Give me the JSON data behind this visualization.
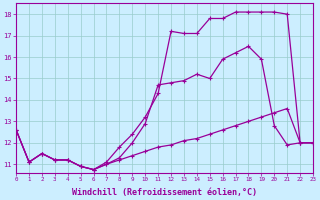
{
  "background_color": "#cceeff",
  "line_color": "#990099",
  "grid_color": "#99cccc",
  "xlabel": "Windchill (Refroidissement éolien,°C)",
  "xlabel_fontsize": 6.0,
  "xtick_labels": [
    "0",
    "1",
    "2",
    "3",
    "4",
    "5",
    "6",
    "7",
    "8",
    "9",
    "10",
    "11",
    "12",
    "13",
    "14",
    "15",
    "16",
    "17",
    "18",
    "19",
    "20",
    "21",
    "22",
    "23"
  ],
  "ytick_labels": [
    "11",
    "12",
    "13",
    "14",
    "15",
    "16",
    "17",
    "18"
  ],
  "ytick_vals": [
    11,
    12,
    13,
    14,
    15,
    16,
    17,
    18
  ],
  "xlim": [
    0,
    23
  ],
  "ylim": [
    10.6,
    18.5
  ],
  "curve1_x": [
    0,
    1,
    2,
    3,
    4,
    5,
    6,
    7,
    8,
    9,
    10,
    11,
    12,
    13,
    14,
    15,
    16,
    17,
    18,
    19,
    20,
    21,
    22,
    23
  ],
  "curve1_y": [
    12.6,
    11.1,
    11.5,
    11.2,
    11.2,
    10.9,
    10.75,
    11.1,
    11.8,
    12.4,
    13.2,
    14.3,
    17.2,
    17.1,
    17.1,
    17.8,
    17.8,
    18.1,
    18.1,
    18.1,
    18.1,
    18.0,
    12.0,
    12.0
  ],
  "curve2_x": [
    0,
    1,
    2,
    3,
    4,
    5,
    6,
    7,
    8,
    9,
    10,
    11,
    12,
    13,
    14,
    15,
    16,
    17,
    18,
    19,
    20,
    21,
    22,
    23
  ],
  "curve2_y": [
    12.6,
    11.1,
    11.5,
    11.2,
    11.2,
    10.9,
    10.75,
    11.0,
    11.3,
    12.0,
    12.9,
    14.7,
    14.8,
    14.9,
    15.2,
    15.0,
    15.9,
    16.2,
    16.5,
    15.9,
    12.8,
    11.9,
    12.0,
    12.0
  ],
  "curve3_x": [
    0,
    1,
    2,
    3,
    4,
    5,
    6,
    7,
    8,
    9,
    10,
    11,
    12,
    13,
    14,
    15,
    16,
    17,
    18,
    19,
    20,
    21,
    22,
    23
  ],
  "curve3_y": [
    12.6,
    11.1,
    11.5,
    11.2,
    11.2,
    10.9,
    10.75,
    11.0,
    11.2,
    11.4,
    11.6,
    11.8,
    11.9,
    12.1,
    12.2,
    12.4,
    12.6,
    12.8,
    13.0,
    13.2,
    13.4,
    13.6,
    12.0,
    12.0
  ]
}
